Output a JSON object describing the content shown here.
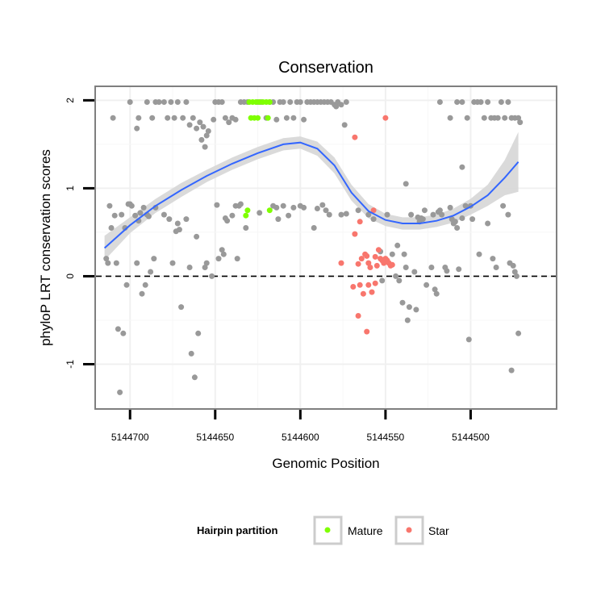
{
  "chart_data": {
    "type": "scatter",
    "title": "Conservation",
    "xlabel": "Genomic Position",
    "ylabel": "phyloP LRT conservation scores",
    "x_reversed": true,
    "xlim": [
      5144720,
      5144450
    ],
    "ylim": [
      -1.5,
      2.15
    ],
    "x_ticks": [
      5144700,
      5144650,
      5144600,
      5144550,
      5144500
    ],
    "x_tick_labels": [
      "5144700",
      "5144650",
      "5144600",
      "5144550",
      "5144500"
    ],
    "y_ticks": [
      -1,
      0,
      1,
      2
    ],
    "y_tick_labels": [
      "-1",
      "0",
      "1",
      "2"
    ],
    "reference_line": {
      "y": 0,
      "style": "dashed",
      "color": "#000000"
    },
    "grid": true,
    "legend": {
      "title": "Hairpin partition",
      "placement": "bottom",
      "entries": [
        {
          "label": "Mature",
          "color": "#7FFF00"
        },
        {
          "label": "Star",
          "color": "#F8766D"
        }
      ]
    },
    "colors": {
      "other": "#999999",
      "mature": "#7FFF00",
      "star": "#F8766D",
      "smooth": "#3366FF",
      "ribbon": "#D6D6D6"
    },
    "series": [
      {
        "group": "other",
        "points": [
          [
            5144714,
            0.2
          ],
          [
            5144713,
            0.15
          ],
          [
            5144712,
            0.8
          ],
          [
            5144711,
            0.55
          ],
          [
            5144709,
            0.69
          ],
          [
            5144708,
            0.15
          ],
          [
            5144707,
            -0.6
          ],
          [
            5144706,
            -1.32
          ],
          [
            5144705,
            0.7
          ],
          [
            5144704,
            -0.65
          ],
          [
            5144703,
            0.55
          ],
          [
            5144702,
            -0.1
          ],
          [
            5144701,
            0.82
          ],
          [
            5144700,
            0.82
          ],
          [
            5144699,
            0.8
          ],
          [
            5144697,
            0.69
          ],
          [
            5144696,
            0.15
          ],
          [
            5144695,
            0.63
          ],
          [
            5144694,
            0.72
          ],
          [
            5144693,
            -0.2
          ],
          [
            5144692,
            0.78
          ],
          [
            5144691,
            -0.1
          ],
          [
            5144690,
            0.7
          ],
          [
            5144689,
            0.68
          ],
          [
            5144688,
            0.05
          ],
          [
            5144686,
            0.2
          ],
          [
            5144685,
            0.78
          ],
          [
            5144680,
            0.7
          ],
          [
            5144677,
            0.65
          ],
          [
            5144675,
            0.15
          ],
          [
            5144673,
            0.51
          ],
          [
            5144672,
            0.6
          ],
          [
            5144671,
            0.53
          ],
          [
            5144670,
            -0.35
          ],
          [
            5144667,
            0.65
          ],
          [
            5144665,
            0.1
          ],
          [
            5144664,
            -0.88
          ],
          [
            5144662,
            -1.15
          ],
          [
            5144661,
            0.45
          ],
          [
            5144660,
            -0.65
          ],
          [
            5144656,
            0.1
          ],
          [
            5144655,
            0.15
          ],
          [
            5144652,
            0.0
          ],
          [
            5144649,
            0.81
          ],
          [
            5144648,
            0.2
          ],
          [
            5144646,
            0.3
          ],
          [
            5144645,
            0.25
          ],
          [
            5144644,
            0.66
          ],
          [
            5144643,
            0.63
          ],
          [
            5144640,
            0.69
          ],
          [
            5144638,
            0.8
          ],
          [
            5144637,
            0.2
          ],
          [
            5144636,
            0.8
          ],
          [
            5144635,
            0.82
          ],
          [
            5144632,
            0.55
          ],
          [
            5144624,
            0.72
          ],
          [
            5144616,
            0.8
          ],
          [
            5144614,
            0.78
          ],
          [
            5144613,
            0.65
          ],
          [
            5144610,
            0.8
          ],
          [
            5144607,
            0.69
          ],
          [
            5144604,
            0.78
          ],
          [
            5144600,
            0.8
          ],
          [
            5144598,
            0.78
          ],
          [
            5144592,
            0.55
          ],
          [
            5144590,
            0.77
          ],
          [
            5144587,
            0.81
          ],
          [
            5144585,
            0.75
          ],
          [
            5144583,
            0.7
          ],
          [
            5144576,
            0.7
          ],
          [
            5144573,
            0.71
          ],
          [
            5144566,
            0.75
          ],
          [
            5144560,
            0.7
          ],
          [
            5144557,
            0.65
          ],
          [
            5144553,
            0.28
          ],
          [
            5144552,
            -0.05
          ],
          [
            5144549,
            0.7
          ],
          [
            5144546,
            0.25
          ],
          [
            5144544,
            0.0
          ],
          [
            5144543,
            0.35
          ],
          [
            5144542,
            -0.05
          ],
          [
            5144540,
            -0.3
          ],
          [
            5144539,
            0.25
          ],
          [
            5144538,
            0.1
          ],
          [
            5144537,
            -0.5
          ],
          [
            5144536,
            -0.35
          ],
          [
            5144535,
            0.7
          ],
          [
            5144533,
            0.05
          ],
          [
            5144532,
            -0.38
          ],
          [
            5144531,
            0.67
          ],
          [
            5144530,
            0.62
          ],
          [
            5144529,
            0.66
          ],
          [
            5144528,
            0.65
          ],
          [
            5144527,
            0.75
          ],
          [
            5144526,
            -0.1
          ],
          [
            5144523,
            0.1
          ],
          [
            5144522,
            0.7
          ],
          [
            5144521,
            -0.15
          ],
          [
            5144520,
            -0.2
          ],
          [
            5144519,
            0.73
          ],
          [
            5144518,
            0.75
          ],
          [
            5144517,
            0.7
          ],
          [
            5144515,
            0.1
          ],
          [
            5144514,
            0.06
          ],
          [
            5144512,
            0.78
          ],
          [
            5144511,
            0.65
          ],
          [
            5144510,
            0.6
          ],
          [
            5144509,
            0.62
          ],
          [
            5144508,
            0.55
          ],
          [
            5144507,
            0.08
          ],
          [
            5144505,
            0.66
          ],
          [
            5144503,
            0.8
          ],
          [
            5144501,
            -0.72
          ],
          [
            5144500,
            0.8
          ],
          [
            5144499,
            0.65
          ],
          [
            5144495,
            0.25
          ],
          [
            5144490,
            0.6
          ],
          [
            5144487,
            0.2
          ],
          [
            5144485,
            0.1
          ],
          [
            5144481,
            0.8
          ],
          [
            5144478,
            0.7
          ],
          [
            5144477,
            0.15
          ],
          [
            5144476,
            -1.07
          ],
          [
            5144475,
            0.12
          ],
          [
            5144474,
            0.05
          ],
          [
            5144473,
            0.0
          ],
          [
            5144472,
            -0.65
          ],
          [
            5144471,
            1.75
          ],
          [
            5144505,
            1.24
          ],
          [
            5144538,
            1.05
          ],
          [
            5144658,
            1.55
          ],
          [
            5144656,
            1.47
          ],
          [
            5144655,
            1.6
          ],
          [
            5144654,
            1.65
          ],
          [
            5144651,
            1.78
          ],
          [
            5144696,
            1.68
          ],
          [
            5144710,
            1.8
          ],
          [
            5144700,
            1.98
          ],
          [
            5144695,
            1.8
          ],
          [
            5144690,
            1.98
          ],
          [
            5144687,
            1.8
          ],
          [
            5144685,
            1.98
          ],
          [
            5144683,
            1.98
          ],
          [
            5144680,
            1.98
          ],
          [
            5144678,
            1.8
          ],
          [
            5144676,
            1.98
          ],
          [
            5144674,
            1.8
          ],
          [
            5144672,
            1.98
          ],
          [
            5144669,
            1.8
          ],
          [
            5144667,
            1.98
          ],
          [
            5144665,
            1.72
          ],
          [
            5144663,
            1.8
          ],
          [
            5144661,
            1.68
          ],
          [
            5144659,
            1.75
          ],
          [
            5144657,
            1.7
          ],
          [
            5144650,
            1.98
          ],
          [
            5144648,
            1.98
          ],
          [
            5144646,
            1.98
          ],
          [
            5144644,
            1.8
          ],
          [
            5144642,
            1.75
          ],
          [
            5144640,
            1.8
          ],
          [
            5144638,
            1.78
          ],
          [
            5144635,
            1.98
          ],
          [
            5144633,
            1.98
          ],
          [
            5144631,
            1.98
          ],
          [
            5144625,
            1.98
          ],
          [
            5144623,
            1.98
          ],
          [
            5144620,
            1.8
          ],
          [
            5144618,
            1.98
          ],
          [
            5144616,
            1.98
          ],
          [
            5144614,
            1.78
          ],
          [
            5144612,
            1.98
          ],
          [
            5144610,
            1.98
          ],
          [
            5144608,
            1.8
          ],
          [
            5144606,
            1.98
          ],
          [
            5144604,
            1.8
          ],
          [
            5144602,
            1.98
          ],
          [
            5144600,
            1.98
          ],
          [
            5144598,
            1.78
          ],
          [
            5144596,
            1.98
          ],
          [
            5144594,
            1.98
          ],
          [
            5144592,
            1.98
          ],
          [
            5144590,
            1.98
          ],
          [
            5144588,
            1.98
          ],
          [
            5144586,
            1.98
          ],
          [
            5144584,
            1.98
          ],
          [
            5144582,
            1.98
          ],
          [
            5144580,
            1.95
          ],
          [
            5144579,
            1.93
          ],
          [
            5144578,
            1.98
          ],
          [
            5144576,
            1.95
          ],
          [
            5144574,
            1.72
          ],
          [
            5144573,
            1.98
          ],
          [
            5144518,
            1.98
          ],
          [
            5144512,
            1.8
          ],
          [
            5144508,
            1.98
          ],
          [
            5144505,
            1.98
          ],
          [
            5144502,
            1.8
          ],
          [
            5144498,
            1.98
          ],
          [
            5144496,
            1.98
          ],
          [
            5144494,
            1.98
          ],
          [
            5144492,
            1.8
          ],
          [
            5144490,
            1.98
          ],
          [
            5144488,
            1.8
          ],
          [
            5144486,
            1.8
          ],
          [
            5144484,
            1.8
          ],
          [
            5144482,
            1.98
          ],
          [
            5144480,
            1.8
          ],
          [
            5144478,
            1.98
          ],
          [
            5144476,
            1.8
          ],
          [
            5144474,
            1.8
          ],
          [
            5144472,
            1.8
          ]
        ]
      },
      {
        "group": "mature",
        "name": "Mature",
        "points": [
          [
            5144630,
            1.98
          ],
          [
            5144628,
            1.98
          ],
          [
            5144626,
            1.98
          ],
          [
            5144624,
            1.98
          ],
          [
            5144622,
            1.98
          ],
          [
            5144620,
            1.98
          ],
          [
            5144618,
            1.98
          ],
          [
            5144629,
            1.8
          ],
          [
            5144627,
            1.8
          ],
          [
            5144625,
            1.8
          ],
          [
            5144619,
            1.8
          ],
          [
            5144632,
            0.69
          ],
          [
            5144631,
            0.75
          ],
          [
            5144618,
            0.75
          ]
        ]
      },
      {
        "group": "star",
        "name": "Star",
        "points": [
          [
            5144568,
            1.58
          ],
          [
            5144550,
            1.8
          ],
          [
            5144568,
            0.48
          ],
          [
            5144566,
            0.14
          ],
          [
            5144565,
            0.62
          ],
          [
            5144564,
            0.2
          ],
          [
            5144562,
            0.25
          ],
          [
            5144561,
            0.23
          ],
          [
            5144560,
            0.15
          ],
          [
            5144559,
            0.1
          ],
          [
            5144557,
            0.75
          ],
          [
            5144556,
            0.22
          ],
          [
            5144555,
            0.12
          ],
          [
            5144554,
            0.3
          ],
          [
            5144553,
            0.2
          ],
          [
            5144552,
            0.18
          ],
          [
            5144551,
            0.15
          ],
          [
            5144550,
            0.2
          ],
          [
            5144549,
            0.18
          ],
          [
            5144548,
            0.15
          ],
          [
            5144547,
            0.12
          ],
          [
            5144546,
            0.13
          ],
          [
            5144569,
            -0.12
          ],
          [
            5144566,
            -0.45
          ],
          [
            5144565,
            -0.1
          ],
          [
            5144563,
            -0.2
          ],
          [
            5144561,
            -0.63
          ],
          [
            5144560,
            -0.1
          ],
          [
            5144558,
            -0.18
          ],
          [
            5144556,
            -0.08
          ],
          [
            5144576,
            0.15
          ]
        ]
      }
    ],
    "smooth_line": {
      "x": [
        5144715,
        5144700,
        5144685,
        5144670,
        5144655,
        5144640,
        5144625,
        5144610,
        5144600,
        5144590,
        5144580,
        5144570,
        5144560,
        5144550,
        5144540,
        5144530,
        5144520,
        5144510,
        5144500,
        5144490,
        5144480,
        5144472
      ],
      "y": [
        0.32,
        0.58,
        0.8,
        0.98,
        1.14,
        1.28,
        1.4,
        1.5,
        1.52,
        1.45,
        1.26,
        0.95,
        0.74,
        0.64,
        0.6,
        0.6,
        0.63,
        0.69,
        0.79,
        0.92,
        1.12,
        1.3
      ],
      "band": [
        0.14,
        0.09,
        0.08,
        0.08,
        0.07,
        0.07,
        0.07,
        0.07,
        0.07,
        0.08,
        0.09,
        0.09,
        0.08,
        0.07,
        0.07,
        0.07,
        0.07,
        0.08,
        0.09,
        0.12,
        0.2,
        0.34
      ]
    }
  }
}
